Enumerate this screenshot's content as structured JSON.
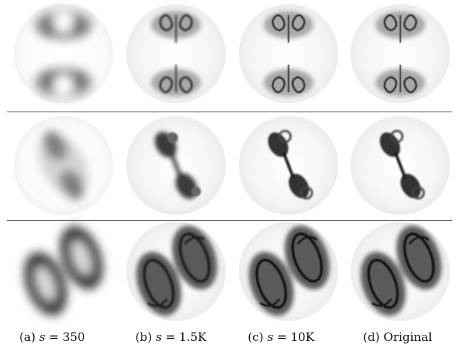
{
  "figure": {
    "rows": [
      {
        "name": "row-1"
      },
      {
        "name": "row-2"
      },
      {
        "name": "row-3"
      }
    ],
    "columns": [
      {
        "label": "(a)",
        "var": "s",
        "eq": " = 350"
      },
      {
        "label": "(b)",
        "var": "s",
        "eq": " = 1.5K"
      },
      {
        "label": "(c)",
        "var": "s",
        "eq": " = 10K"
      },
      {
        "label": "(d)",
        "text": "Original"
      }
    ]
  }
}
